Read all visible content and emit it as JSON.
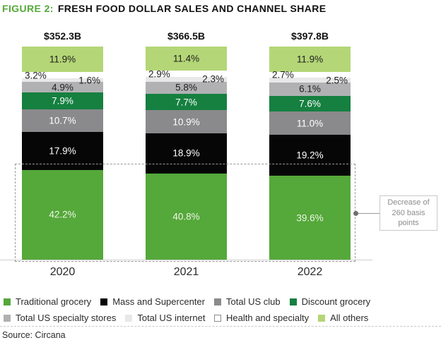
{
  "figure": {
    "label": "FIGURE 2:",
    "title": "FRESH FOOD DOLLAR SALES AND CHANNEL SHARE",
    "source": "Source: Circana"
  },
  "chart_data": {
    "type": "bar",
    "variant": "stacked-100-percent-column",
    "title": "Fresh food dollar sales and channel share",
    "categories": [
      "2020",
      "2021",
      "2022"
    ],
    "totals": [
      "$352.3B",
      "$366.5B",
      "$397.8B"
    ],
    "unit": "%",
    "ylim": [
      0,
      100
    ],
    "grid": false,
    "legend_position": "bottom",
    "stack_order_bottom_to_top": [
      "Traditional grocery",
      "Mass and Supercenter",
      "Total US club",
      "Discount grocery",
      "Total US specialty stores",
      "Total US internet",
      "Health and specialty",
      "All others"
    ],
    "series": [
      {
        "name": "Traditional grocery",
        "color": "#55a83a",
        "label_color": "#eef5e7",
        "label_align": "center",
        "values": [
          42.2,
          40.8,
          39.6
        ]
      },
      {
        "name": "Mass and Supercenter",
        "color": "#060606",
        "label_color": "#ffffff",
        "label_align": "center",
        "values": [
          17.9,
          18.9,
          19.2
        ]
      },
      {
        "name": "Total US club",
        "color": "#8a8a8c",
        "label_color": "#ffffff",
        "label_align": "center",
        "values": [
          10.7,
          10.9,
          11.0
        ]
      },
      {
        "name": "Discount grocery",
        "color": "#158040",
        "label_color": "#ffffff",
        "label_align": "center",
        "values": [
          7.9,
          7.7,
          7.6
        ]
      },
      {
        "name": "Total US specialty stores",
        "color": "#b1b1b3",
        "label_color": "#1f1f1f",
        "label_align": "center",
        "values": [
          4.9,
          5.8,
          6.1
        ]
      },
      {
        "name": "Total US internet",
        "color": "#e8e8e9",
        "label_color": "#1f1f1f",
        "label_align": "right",
        "values": [
          1.6,
          2.3,
          2.5
        ]
      },
      {
        "name": "Health and specialty",
        "color": "#ffffff",
        "label_color": "#1f1f1f",
        "label_align": "left",
        "values": [
          3.2,
          2.9,
          2.7
        ]
      },
      {
        "name": "All others",
        "color": "#b4d677",
        "label_color": "#1f1f1f",
        "label_align": "center",
        "values": [
          11.9,
          11.4,
          11.9
        ]
      }
    ],
    "legend_rows": [
      [
        0,
        1,
        2,
        3
      ],
      [
        4,
        5,
        6,
        7
      ]
    ],
    "annotation": {
      "text": "Decrease of\n260 basis\npoints",
      "target_series": "Traditional grocery"
    }
  },
  "colors": {
    "accent_green": "#55a83a",
    "dashed_outline": "#979797",
    "axis_line": "#cfcfcf",
    "callout_border": "#c9c9c9",
    "callout_text": "#8c8c8c"
  }
}
